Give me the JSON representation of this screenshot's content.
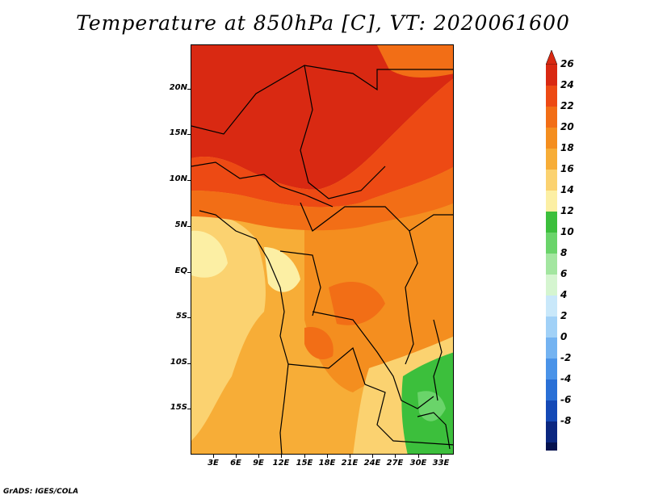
{
  "title": "Temperature at 850hPa [C], VT: 2020061600",
  "footer": "GrADS: IGES/COLA",
  "map": {
    "variable": "Temperature at 850hPa",
    "units": "C",
    "valid_time": "2020061600",
    "lat_labels": [
      "20N",
      "15N",
      "10N",
      "5N",
      "EQ",
      "5S",
      "10S",
      "15S"
    ],
    "lon_labels": [
      "3E",
      "6E",
      "9E",
      "12E",
      "15E",
      "18E",
      "21E",
      "24E",
      "27E",
      "30E",
      "33E"
    ]
  },
  "colorbar": {
    "labels": [
      "26",
      "24",
      "22",
      "20",
      "18",
      "16",
      "14",
      "12",
      "10",
      "8",
      "6",
      "4",
      "2",
      "0",
      "-2",
      "-4",
      "-6",
      "-8"
    ],
    "colors": [
      "#d92912",
      "#ed4a14",
      "#f26e16",
      "#f48e1f",
      "#f7ad37",
      "#fbd270",
      "#fcefa4",
      "#3cbf3c",
      "#6ad46a",
      "#a3e6a0",
      "#d5f5d0",
      "#c9e8fa",
      "#a1d1f7",
      "#74b3f1",
      "#4a93e8",
      "#2a70d6",
      "#1449b6",
      "#0b2780",
      "#05124f"
    ],
    "top_cap_color": "#d92912",
    "bottom_cap_color": "#e6e6fa"
  }
}
